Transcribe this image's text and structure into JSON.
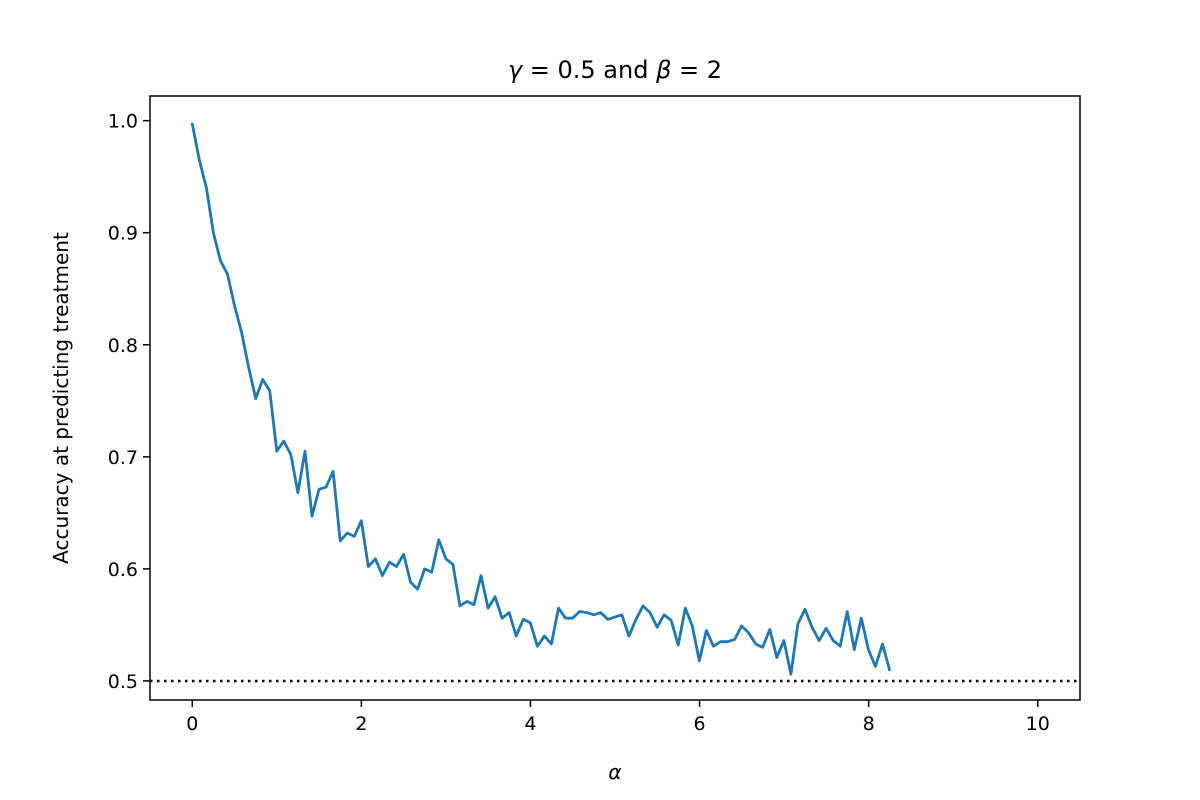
{
  "chart_data": {
    "type": "line",
    "title": "γ = 0.5 and β = 2",
    "title_parts": {
      "gamma": "γ",
      "gamma_val": " = 0.5 and ",
      "beta": "β",
      "beta_val": " = 2"
    },
    "xlabel": "α",
    "ylabel": "Accuracy at predicting treatment",
    "xlim": [
      -0.5,
      10.5
    ],
    "ylim": [
      0.483,
      1.022
    ],
    "xticks": [
      0,
      2,
      4,
      6,
      8,
      10
    ],
    "xtick_labels": [
      "0",
      "2",
      "4",
      "6",
      "8",
      "10"
    ],
    "yticks": [
      0.5,
      0.6,
      0.7,
      0.8,
      0.9,
      1.0
    ],
    "ytick_labels": [
      "0.5",
      "0.6",
      "0.7",
      "0.8",
      "0.9",
      "1.0"
    ],
    "grid": false,
    "line_color": "#1f77b4",
    "reference_line": {
      "y": 0.5,
      "style": "dotted",
      "color": "#000000"
    },
    "series": [
      {
        "x_start": 0,
        "x_step": 0.0833,
        "values": [
          0.997,
          0.965,
          0.94,
          0.9,
          0.875,
          0.863,
          0.835,
          0.811,
          0.78,
          0.752,
          0.769,
          0.759,
          0.705,
          0.714,
          0.702,
          0.668,
          0.705,
          0.647,
          0.671,
          0.673,
          0.687,
          0.625,
          0.632,
          0.629,
          0.643,
          0.602,
          0.609,
          0.594,
          0.606,
          0.602,
          0.613,
          0.588,
          0.582,
          0.6,
          0.597,
          0.626,
          0.609,
          0.604,
          0.567,
          0.571,
          0.568,
          0.594,
          0.565,
          0.575,
          0.556,
          0.561,
          0.54,
          0.555,
          0.552,
          0.531,
          0.54,
          0.533,
          0.565,
          0.556,
          0.556,
          0.562,
          0.561,
          0.559,
          0.561,
          0.555,
          0.557,
          0.559,
          0.54,
          0.555,
          0.567,
          0.561,
          0.548,
          0.559,
          0.554,
          0.532,
          0.565,
          0.549,
          0.518,
          0.545,
          0.531,
          0.535,
          0.535,
          0.537,
          0.549,
          0.543,
          0.533,
          0.53,
          0.546,
          0.521,
          0.536,
          0.506,
          0.551,
          0.564,
          0.548,
          0.536,
          0.547,
          0.536,
          0.531,
          0.562,
          0.528,
          0.556,
          0.528,
          0.513,
          0.533,
          0.51
        ]
      }
    ]
  }
}
